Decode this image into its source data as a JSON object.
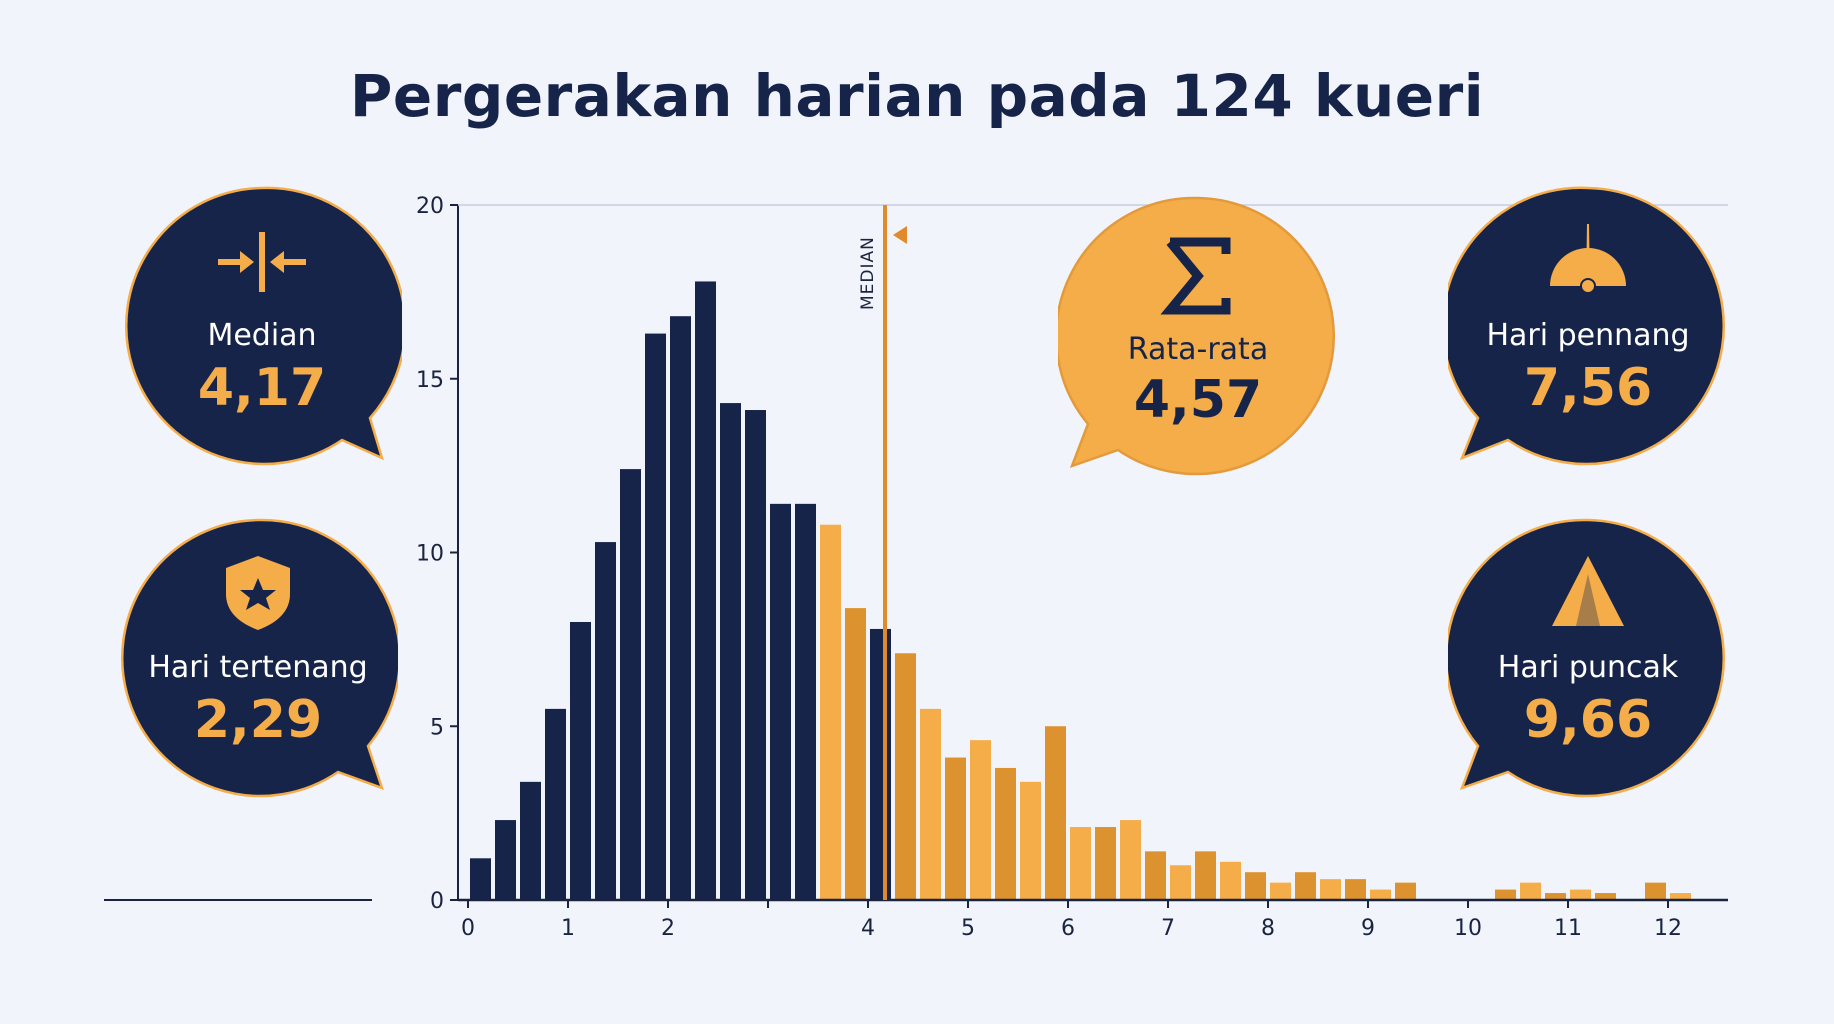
{
  "title": "Pergerakan harian pada 124 kueri",
  "stats": {
    "median": {
      "label": "Median",
      "value": "4,17",
      "icon": "compress-arrows-icon"
    },
    "calmest": {
      "label": "Hari tertenang",
      "value": "2,29",
      "icon": "shield-star-icon"
    },
    "mean": {
      "label": "Rata-rata",
      "value": "4,57",
      "icon": "sigma-icon"
    },
    "steady": {
      "label": "Hari pennang",
      "value": "7,56",
      "icon": "gauge-icon"
    },
    "peak": {
      "label": "Hari puncak",
      "value": "9,66",
      "icon": "peak-icon"
    }
  },
  "colors": {
    "navy": "#16244a",
    "orange": "#f5ad4a",
    "orange_dark": "#dc922e",
    "median_line": "#e08a2c"
  },
  "chart_data": {
    "type": "bar",
    "title": "Pergerakan harian pada 124 kueri",
    "xlabel": "",
    "ylabel": "",
    "xlim": [
      -0.1,
      12.6
    ],
    "ylim": [
      0,
      20
    ],
    "x_ticks": [
      0,
      1,
      2,
      3,
      4,
      5,
      6,
      7,
      8,
      9,
      10,
      11,
      12
    ],
    "x_tick_labels": [
      "0",
      "1",
      "2",
      "",
      "4",
      "5",
      "6",
      "7",
      "8",
      "9",
      "10",
      "11",
      "12"
    ],
    "y_ticks": [
      0,
      5,
      10,
      15,
      20
    ],
    "bin_width": 0.25,
    "bin_starts": [
      0,
      0.25,
      0.5,
      0.75,
      1,
      1.25,
      1.5,
      1.75,
      2,
      2.25,
      2.5,
      2.75,
      3,
      3.25,
      3.5,
      3.75,
      4,
      4.25,
      4.5,
      4.75,
      5,
      5.25,
      5.5,
      5.75,
      6,
      6.25,
      6.5,
      6.75,
      7,
      7.25,
      7.5,
      7.75,
      8,
      8.25,
      8.5,
      8.75,
      9,
      9.25,
      9.5,
      9.75,
      10,
      10.25,
      10.5,
      10.75,
      11,
      11.25,
      11.5,
      11.75,
      12,
      12.25
    ],
    "values": [
      1.2,
      2.3,
      3.4,
      5.5,
      8.0,
      10.3,
      12.4,
      16.3,
      16.8,
      17.8,
      14.3,
      14.1,
      11.4,
      11.4,
      10.8,
      8.4,
      7.8,
      7.1,
      5.5,
      4.1,
      4.6,
      3.8,
      3.4,
      5.0,
      2.1,
      2.1,
      2.3,
      1.4,
      1.0,
      1.4,
      1.1,
      0.8,
      0.5,
      0.8,
      0.6,
      0.6,
      0.3,
      0.5,
      0,
      0,
      0,
      0.3,
      0.5,
      0.2,
      0.3,
      0.2,
      0,
      0.5,
      0.2,
      0
    ],
    "median": 4.17,
    "median_label": "MEDIAN",
    "grid": false
  }
}
